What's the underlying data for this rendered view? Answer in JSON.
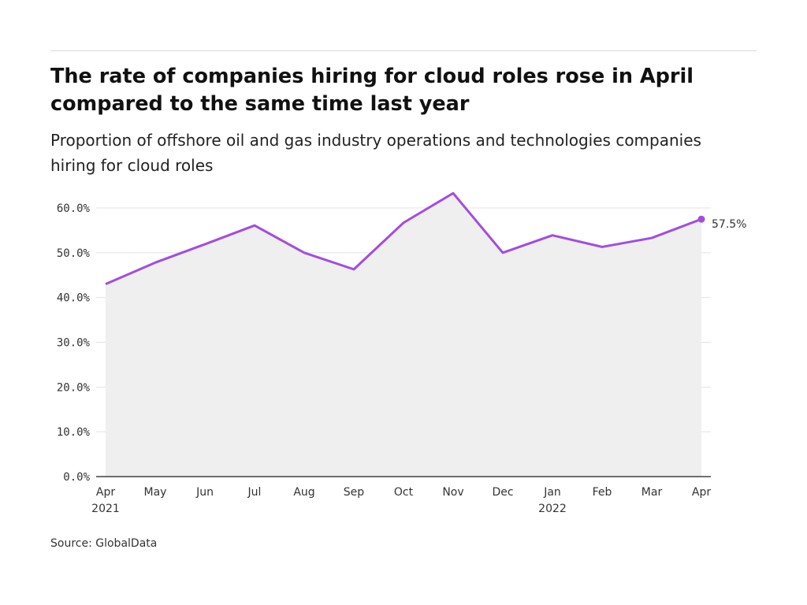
{
  "header": {
    "title": "The rate of companies hiring for cloud roles rose in April compared to the same time last year",
    "subtitle": "Proportion of offshore oil and gas industry operations and technologies companies hiring for cloud roles"
  },
  "footer": {
    "source": "Source: GlobalData"
  },
  "colors": {
    "line": "#a24de0",
    "area": "#efefef",
    "grid": "#e3e3e3",
    "axis": "#1a1a1a"
  },
  "chart_data": {
    "type": "area",
    "title": "The rate of companies hiring for cloud roles rose in April compared to the same time last year",
    "subtitle": "Proportion of offshore oil and gas industry operations and technologies companies hiring for cloud roles",
    "xlabel": "",
    "ylabel": "",
    "categories": [
      "Apr",
      "May",
      "Jun",
      "Jul",
      "Aug",
      "Sep",
      "Oct",
      "Nov",
      "Dec",
      "Jan",
      "Feb",
      "Mar",
      "Apr"
    ],
    "year_labels": [
      "2021",
      "",
      "",
      "",
      "",
      "",
      "",
      "",
      "",
      "2022",
      "",
      "",
      ""
    ],
    "values": [
      43.0,
      47.8,
      51.9,
      56.1,
      50.0,
      46.3,
      56.7,
      63.3,
      50.0,
      53.9,
      51.3,
      53.3,
      57.5
    ],
    "ylim": [
      0,
      60
    ],
    "yticks": [
      0,
      10,
      20,
      30,
      40,
      50,
      60
    ],
    "ytick_labels": [
      "0.0%",
      "10.0%",
      "20.0%",
      "30.0%",
      "40.0%",
      "50.0%",
      "60.0%"
    ],
    "end_label": "57.5%",
    "grid": true,
    "legend": "none"
  }
}
